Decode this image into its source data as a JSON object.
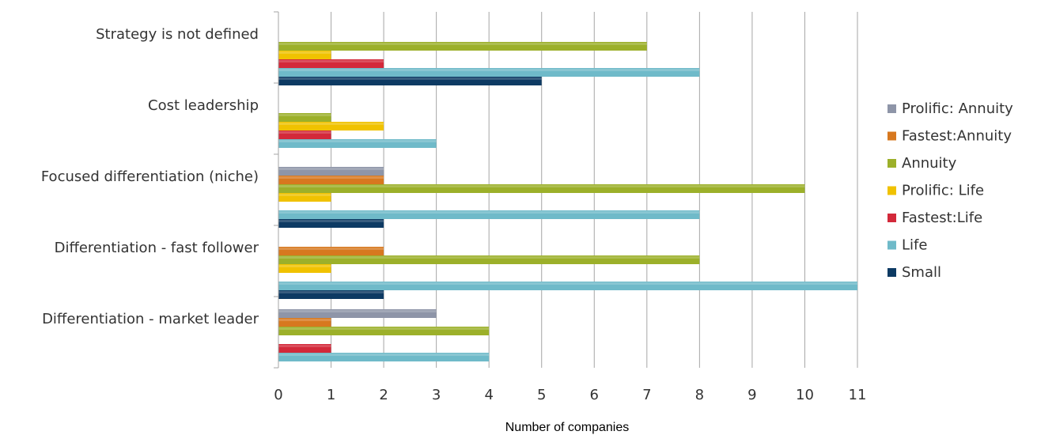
{
  "chart_data": {
    "type": "bar",
    "orientation": "horizontal",
    "categories": [
      "Strategy is not defined",
      "Cost leadership",
      "Focused differentiation (niche)",
      "Differentiation - fast follower",
      "Differentiation - market leader"
    ],
    "series": [
      {
        "name": "Prolific: Annuity",
        "color": "#8e95a8",
        "values": [
          0,
          0,
          2,
          0,
          3
        ]
      },
      {
        "name": "Fastest:Annuity",
        "color": "#d7781f",
        "values": [
          0,
          0,
          2,
          2,
          1
        ]
      },
      {
        "name": "Annuity",
        "color": "#9cb02a",
        "values": [
          7,
          1,
          10,
          8,
          4
        ]
      },
      {
        "name": "Prolific: Life",
        "color": "#f0c200",
        "values": [
          1,
          2,
          1,
          1,
          0
        ]
      },
      {
        "name": "Fastest:Life",
        "color": "#d3293a",
        "values": [
          2,
          1,
          0,
          0,
          1
        ]
      },
      {
        "name": "Life",
        "color": "#6fbac9",
        "values": [
          8,
          3,
          8,
          11,
          4
        ]
      },
      {
        "name": "Small",
        "color": "#0d3a63",
        "values": [
          5,
          0,
          2,
          2,
          0
        ]
      }
    ],
    "xlabel": "Number of companies",
    "xlim": [
      0,
      11
    ],
    "xticks": [
      "0",
      "1",
      "2",
      "3",
      "4",
      "5",
      "6",
      "7",
      "8",
      "9",
      "10",
      "11"
    ],
    "grid": "vertical",
    "legend": "right"
  }
}
